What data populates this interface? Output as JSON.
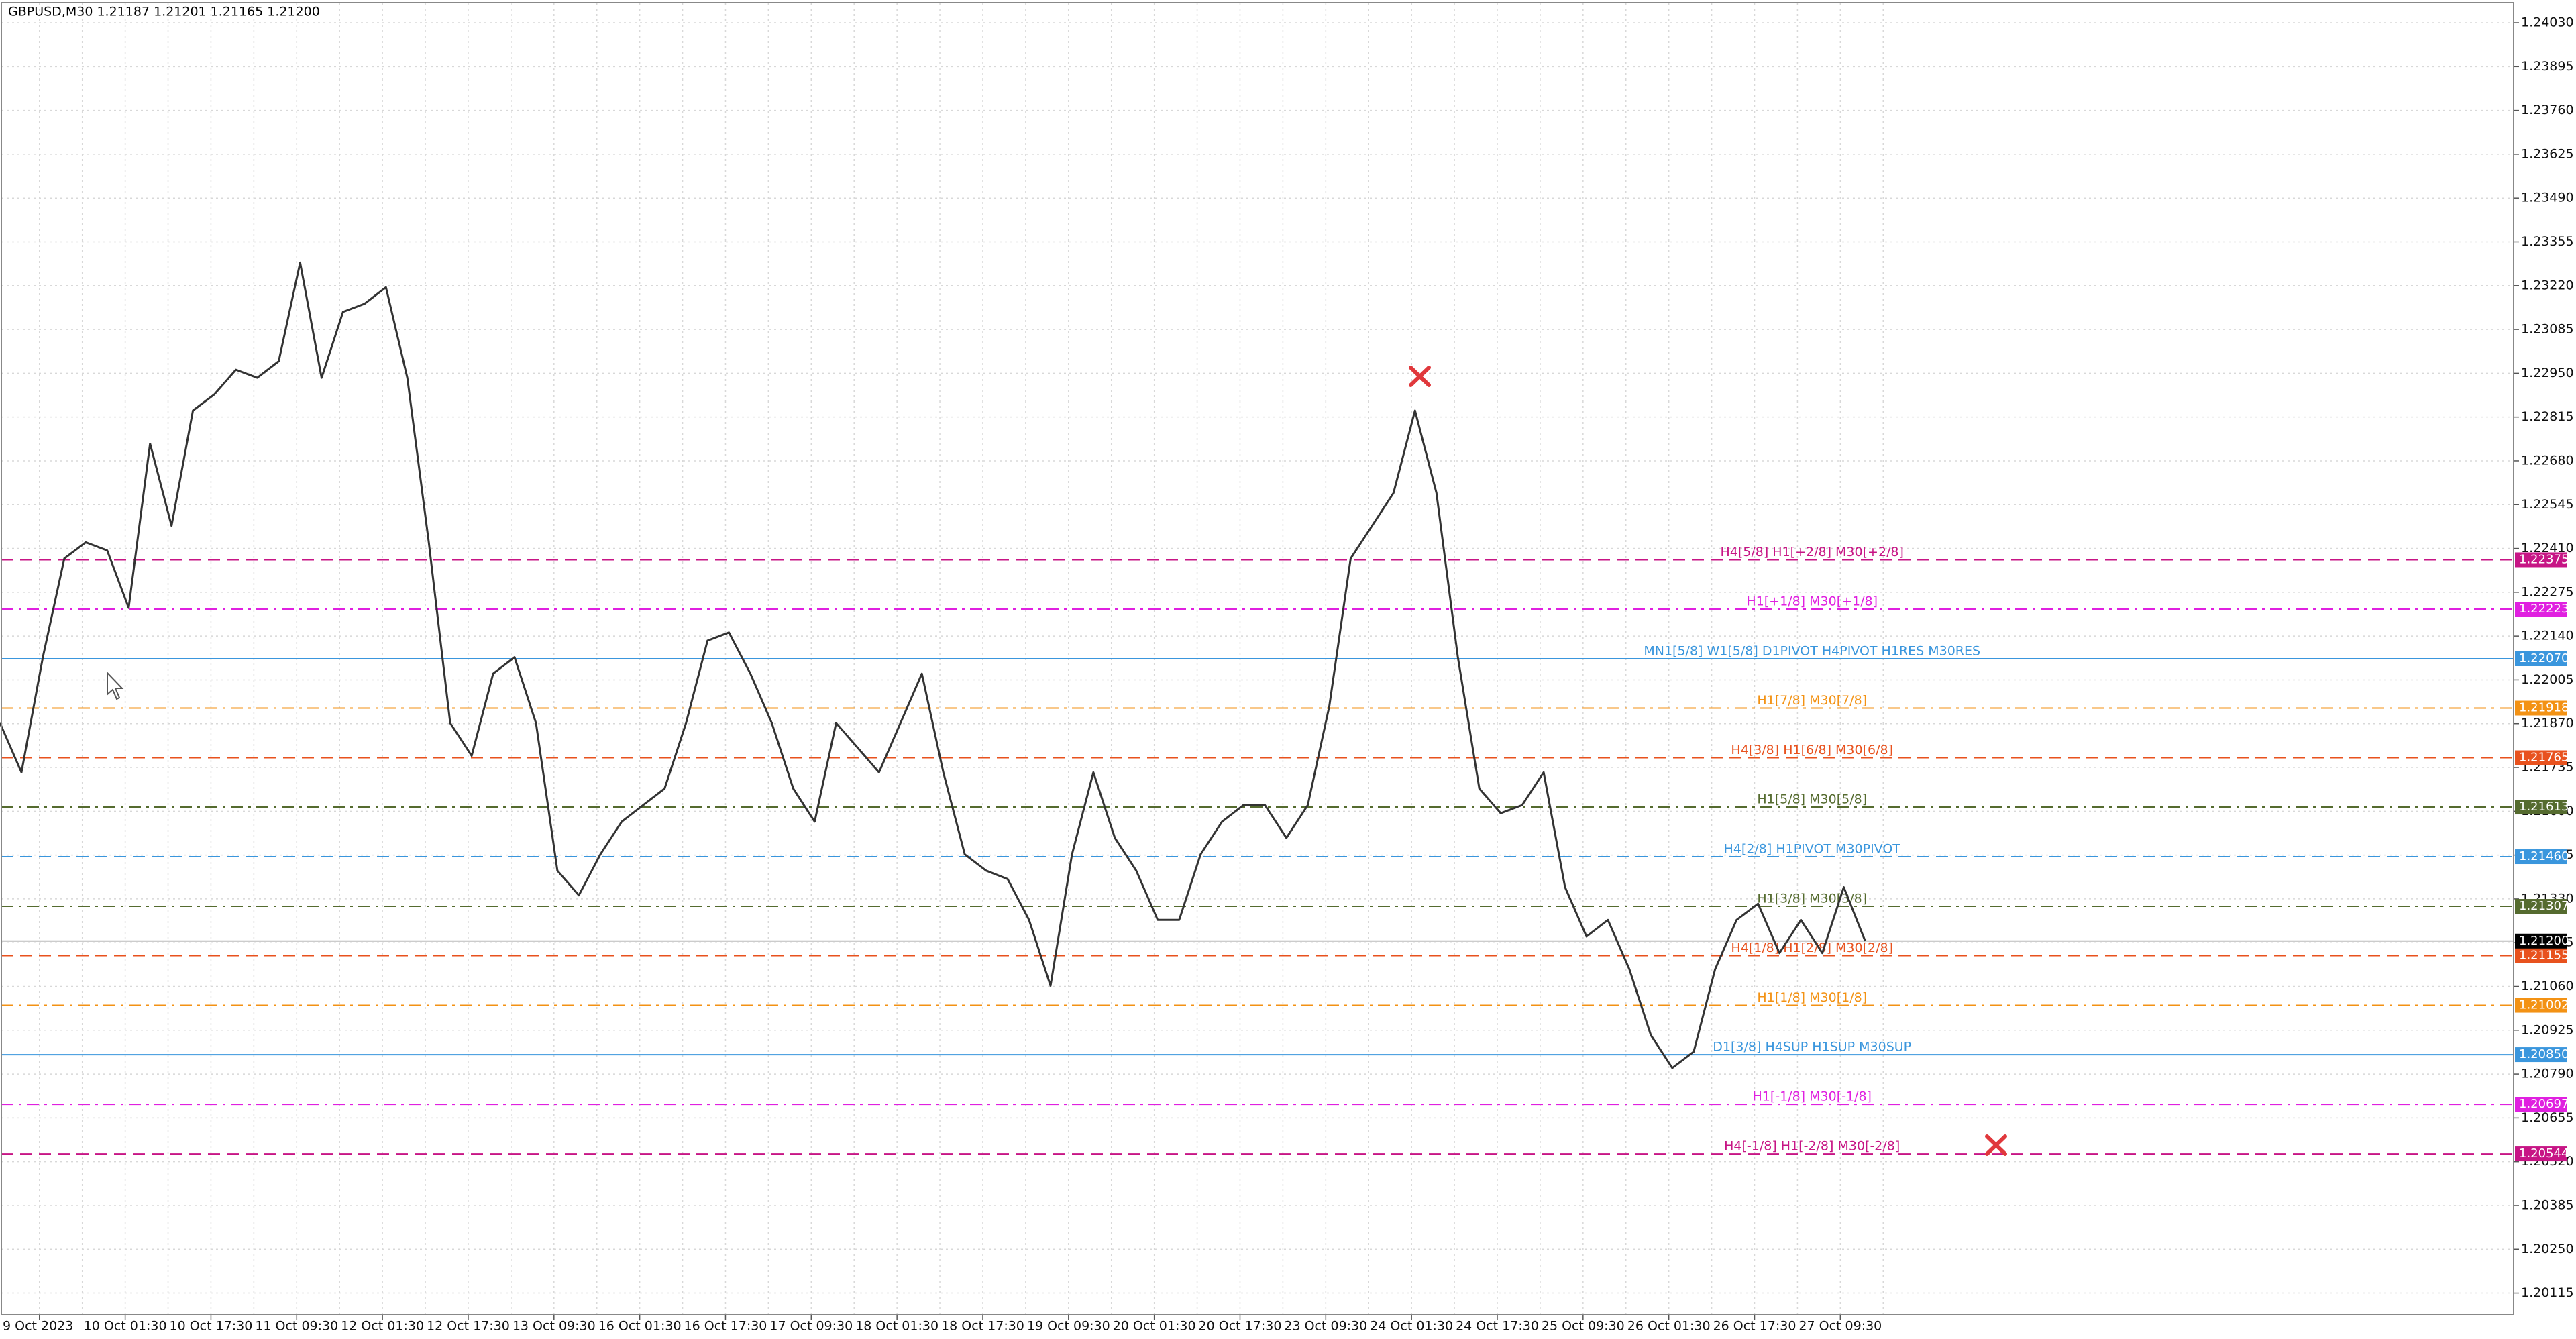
{
  "header": "GBPUSD,M30  1.21187 1.21201 1.21165 1.21200",
  "chart_data": {
    "type": "line",
    "ylim": [
      1.2005,
      1.2409
    ],
    "yticks": [
      1.20115,
      {
        "value": 1.2025,
        "label": "1.20250"
      },
      1.20385,
      {
        "value": 1.2052,
        "label": "1.20520"
      },
      1.20655,
      {
        "value": 1.2079,
        "label": "1.20790"
      },
      1.20925,
      {
        "value": 1.2106,
        "label": "1.21060"
      },
      1.21195,
      {
        "value": 1.2133,
        "label": "1.21330"
      },
      1.21465,
      {
        "value": 1.216,
        "label": "1.21600"
      },
      1.21735,
      {
        "value": 1.2187,
        "label": "1.21870"
      },
      1.22005,
      {
        "value": 1.2214,
        "label": "1.22140"
      },
      1.22275,
      {
        "value": 1.2241,
        "label": "1.22410"
      },
      1.22545,
      {
        "value": 1.2268,
        "label": "1.22680"
      },
      1.22815,
      {
        "value": 1.2295,
        "label": "1.22950"
      },
      1.23085,
      {
        "value": 1.2322,
        "label": "1.23220"
      },
      1.23355,
      {
        "value": 1.2349,
        "label": "1.23490"
      },
      1.23625,
      {
        "value": 1.2376,
        "label": "1.23760"
      },
      1.23895,
      {
        "value": 1.2403,
        "label": "1.24030"
      }
    ],
    "categories": [
      "9 Oct 2023",
      "10 Oct 01:30",
      "10 Oct 17:30",
      "11 Oct 09:30",
      "12 Oct 01:30",
      "12 Oct 17:30",
      "13 Oct 09:30",
      "16 Oct 01:30",
      "16 Oct 17:30",
      "17 Oct 09:30",
      "18 Oct 01:30",
      "18 Oct 17:30",
      "19 Oct 09:30",
      "20 Oct 01:30",
      "20 Oct 17:30",
      "23 Oct 09:30",
      "24 Oct 01:30",
      "24 Oct 17:30",
      "25 Oct 09:30",
      "26 Oct 01:30",
      "26 Oct 17:30",
      "27 Oct 09:30"
    ],
    "grid": true,
    "series": [
      {
        "color": "#333333",
        "values": [
          1.21872,
          1.2172,
          1.22075,
          1.22379,
          1.22429,
          1.22404,
          1.22227,
          1.22733,
          1.2248,
          1.22835,
          1.22885,
          1.22961,
          1.22936,
          1.22987,
          1.23291,
          1.22936,
          1.23139,
          1.23164,
          1.23215,
          1.22936,
          1.22429,
          1.21872,
          1.21771,
          1.22024,
          1.22075,
          1.21872,
          1.21417,
          1.21341,
          1.21467,
          1.21568,
          1.21619,
          1.2167,
          1.21872,
          1.22126,
          1.22151,
          1.22024,
          1.21872,
          1.2167,
          1.21568,
          1.21872,
          1.21796,
          1.2172,
          1.21872,
          1.22024,
          1.2172,
          1.21467,
          1.21417,
          1.21391,
          1.21265,
          1.21062,
          1.21467,
          1.2172,
          1.21518,
          1.21417,
          1.21265,
          1.21265,
          1.21467,
          1.21568,
          1.21619,
          1.21619,
          1.21518,
          1.21619,
          1.21923,
          1.22379,
          1.2248,
          1.22581,
          1.22835,
          1.22581,
          1.22075,
          1.2167,
          1.21594,
          1.21619,
          1.2172,
          1.21366,
          1.21214,
          1.21265,
          1.21113,
          1.2091,
          1.20809,
          1.20859,
          1.21113,
          1.21265,
          1.21315,
          1.21163,
          1.21265,
          1.21163,
          1.21366,
          {
            "value": 1.212,
            "label": "1.21200"
          }
        ]
      }
    ],
    "levels": [
      {
        "name": "H4[5/8] H1[+2/8] M30[+2/8]",
        "price": 1.22375,
        "color": "#c71585",
        "style": "dashed"
      },
      {
        "name": "H1[+1/8] M30[+1/8]",
        "price": 1.22223,
        "color": "#e020e0",
        "style": "dashdot"
      },
      {
        "name": "MN1[5/8] W1[5/8] D1PIVOT H4PIVOT H1RES M30RES",
        "price": {
          "value": 1.2207,
          "label": "1.22070"
        },
        "color": "#3a96dd",
        "style": "solid"
      },
      {
        "name": "H1[7/8] M30[7/8]",
        "price": 1.21918,
        "color": "#f39214",
        "style": "dashdot"
      },
      {
        "name": "H4[3/8] H1[6/8] M30[6/8]",
        "price": 1.21765,
        "color": "#e8521e",
        "style": "dashed"
      },
      {
        "name": "H1[5/8] M30[5/8]",
        "price": 1.21613,
        "color": "#556b2f",
        "style": "dashdot"
      },
      {
        "name": "H4[2/8] H1PIVOT M30PIVOT",
        "price": {
          "value": 1.2146,
          "label": "1.21460"
        },
        "color": "#3a96dd",
        "style": "dashed"
      },
      {
        "name": "H1[3/8] M30[3/8]",
        "price": 1.21307,
        "color": "#556b2f",
        "style": "dashdot"
      },
      {
        "name": "H4[1/8] H1[2/8] M30[2/8]",
        "price": 1.21155,
        "color": "#e8521e",
        "style": "dashed"
      },
      {
        "name": "H1[1/8] M30[1/8]",
        "price": 1.21002,
        "color": "#f39214",
        "style": "dashdot"
      },
      {
        "name": "D1[3/8] H4SUP H1SUP M30SUP",
        "price": {
          "value": 1.2085,
          "label": "1.20850"
        },
        "color": "#3a96dd",
        "style": "solid"
      },
      {
        "name": "H1[-1/8] M30[-1/8]",
        "price": 1.20697,
        "color": "#e020e0",
        "style": "dashdot"
      },
      {
        "name": "H4[-1/8] H1[-2/8] M30[-2/8]",
        "price": 1.20544,
        "color": "#c71585",
        "style": "dashed"
      }
    ],
    "current_price": {
      "value": 1.212,
      "label": "1.21200"
    }
  }
}
